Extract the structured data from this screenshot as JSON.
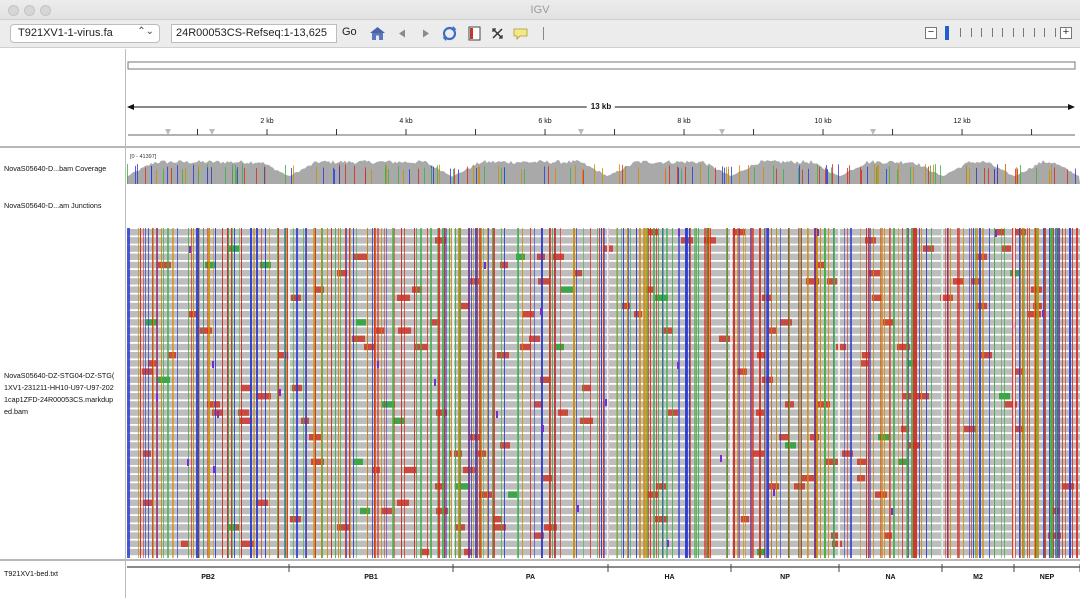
{
  "app": {
    "title": "IGV"
  },
  "toolbar": {
    "genome": "T921XV1-1-virus.fa",
    "locus": "24R00053CS-Refseq:1-13,625",
    "go_label": "Go",
    "icons": [
      "home-icon",
      "back-icon",
      "forward-icon",
      "refresh-icon",
      "roi-icon",
      "resize-icon",
      "popup-text-icon"
    ],
    "zoom_minus": "−",
    "zoom_plus": "+"
  },
  "ruler": {
    "span_label": "13 kb",
    "ticks": [
      {
        "label": "2 kb",
        "kb": 2
      },
      {
        "label": "4 kb",
        "kb": 4
      },
      {
        "label": "6 kb",
        "kb": 6
      },
      {
        "label": "8 kb",
        "kb": 8
      },
      {
        "label": "10 kb",
        "kb": 10
      },
      {
        "label": "12 kb",
        "kb": 12
      }
    ],
    "end_bp": 13625
  },
  "tracks": {
    "coverage_name": "NovaS05640-D...bam Coverage",
    "coverage_range": "[0 - 41397]",
    "junctions_name": "NovaS05640-D...am Junctions",
    "alignment_name_lines": [
      "NovaS05640-DZ-STG04-DZ-STG(",
      "1XV1-231211-HH10-U97-U97-202",
      "1cap1ZFD-24R00053CS.markdup",
      "ed.bam"
    ],
    "feature_name": "T921XV1-bed.txt"
  },
  "features": [
    {
      "name": "PB2"
    },
    {
      "name": "PB1"
    },
    {
      "name": "PA"
    },
    {
      "name": "HA"
    },
    {
      "name": "NP"
    },
    {
      "name": "NA"
    },
    {
      "name": "M2"
    },
    {
      "name": "NEP"
    }
  ],
  "colors": {
    "read_gray": "#bdbdbd",
    "mismatch_a": "#3cb043",
    "mismatch_c": "#2b3bd4",
    "mismatch_g": "#d18a00",
    "mismatch_t": "#d62a1e",
    "insertion": "#7a2bd6",
    "coverage_gray": "#a9a9a9"
  }
}
